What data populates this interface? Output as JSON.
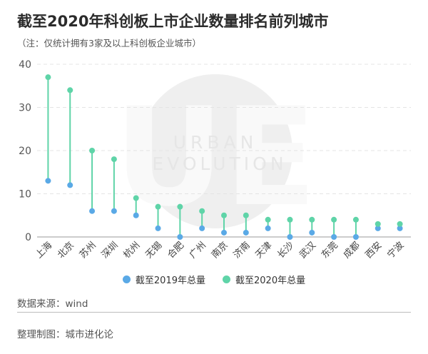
{
  "title": "截至2020年科创板上市企业数量排名前列城市",
  "subtitle": "（注：仅统计拥有3家及以上科创板企业城市）",
  "source": "数据来源：wind",
  "credit": "整理制图：城市进化论",
  "watermark": {
    "logo": "UE",
    "line1": "URBAN",
    "line2": "EVOLUTION"
  },
  "colors": {
    "s2019": "#5aa9e6",
    "s2020": "#5fd4a8",
    "grid": "#e4e4e4",
    "text": "#555555"
  },
  "chart_data": {
    "type": "dumbbell",
    "title": "截至2020年科创板上市企业数量排名前列城市",
    "ylim": [
      0,
      40
    ],
    "yticks": [
      0,
      10,
      20,
      30,
      40
    ],
    "categories": [
      "上海",
      "北京",
      "苏州",
      "深圳",
      "杭州",
      "无锡",
      "合肥",
      "广州",
      "南京",
      "济南",
      "天津",
      "长沙",
      "武汉",
      "东莞",
      "成都",
      "西安",
      "宁波"
    ],
    "series": [
      {
        "name": "截至2019年总量",
        "values": [
          13,
          12,
          6,
          6,
          5,
          2,
          0,
          2,
          1,
          1,
          2,
          0,
          1,
          0,
          0,
          2,
          2
        ]
      },
      {
        "name": "截至2020年总量",
        "values": [
          37,
          34,
          20,
          18,
          9,
          7,
          7,
          6,
          5,
          5,
          4,
          4,
          4,
          4,
          4,
          3,
          3
        ]
      }
    ],
    "legend_position": "bottom",
    "grid": true
  }
}
